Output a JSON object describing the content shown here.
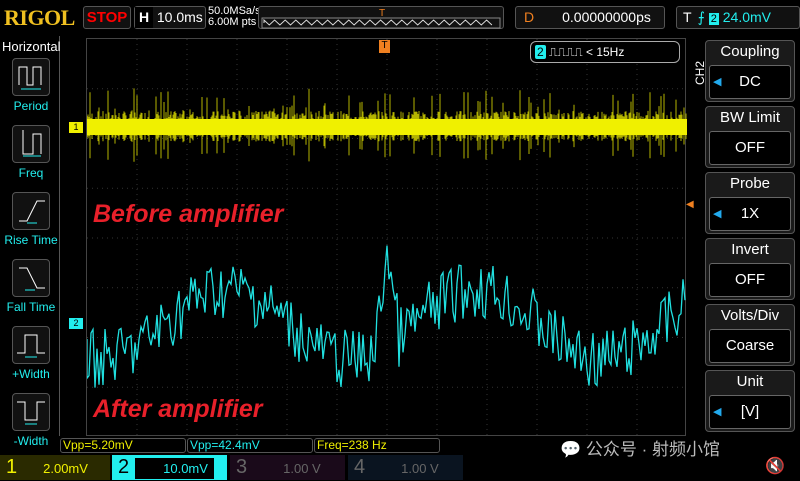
{
  "header": {
    "logo": "RIGOL",
    "run_state": "STOP",
    "h_label": "H",
    "timebase": "10.0ms",
    "sample_rate": "50.0MSa/s",
    "memory_depth": "6.00M pts",
    "d_label": "D",
    "delay": "0.00000000ps",
    "t_label": "T",
    "trigger_source": "2",
    "trigger_level": "24.0mV"
  },
  "left_menu": {
    "title": "Horizontal",
    "items": [
      {
        "label": "Period"
      },
      {
        "label": "Freq"
      },
      {
        "label": "Rise Time"
      },
      {
        "label": "Fall Time"
      },
      {
        "label": "+Width"
      },
      {
        "label": "-Width"
      }
    ]
  },
  "screen": {
    "freq_badge_ch": "2",
    "freq_badge_text": "< 15Hz",
    "annotation_top": "Before amplifier",
    "annotation_bottom": "After amplifier",
    "ch1_marker": "1",
    "ch2_marker": "2",
    "trigger_marker": "T"
  },
  "right_menu": {
    "channel": "CH2",
    "items": [
      {
        "title": "Coupling",
        "value": "DC"
      },
      {
        "title": "BW Limit",
        "value": "OFF"
      },
      {
        "title": "Probe",
        "value": "1X"
      },
      {
        "title": "Invert",
        "value": "OFF"
      },
      {
        "title": "Volts/Div",
        "value": "Coarse"
      },
      {
        "title": "Unit",
        "value": "[V]"
      }
    ]
  },
  "measurements": [
    {
      "text": "Vpp=5.20mV",
      "color": "#f0f000"
    },
    {
      "text": "Vpp=42.4mV",
      "color": "#2ee"
    },
    {
      "text": "Freq=238 Hz",
      "color": "#f0f000"
    }
  ],
  "channels": [
    {
      "num": "1",
      "scale": "2.00mV",
      "color": "#f0f000"
    },
    {
      "num": "2",
      "scale": "10.0mV",
      "color": "#2ee"
    },
    {
      "num": "3",
      "scale": "1.00 V",
      "color": "#555"
    },
    {
      "num": "4",
      "scale": "1.00 V",
      "color": "#555"
    }
  ],
  "watermark": "公众号 · 射频小馆",
  "colors": {
    "ch1": "#f0f000",
    "ch2": "#20e0e0",
    "trigger": "#f08020"
  }
}
